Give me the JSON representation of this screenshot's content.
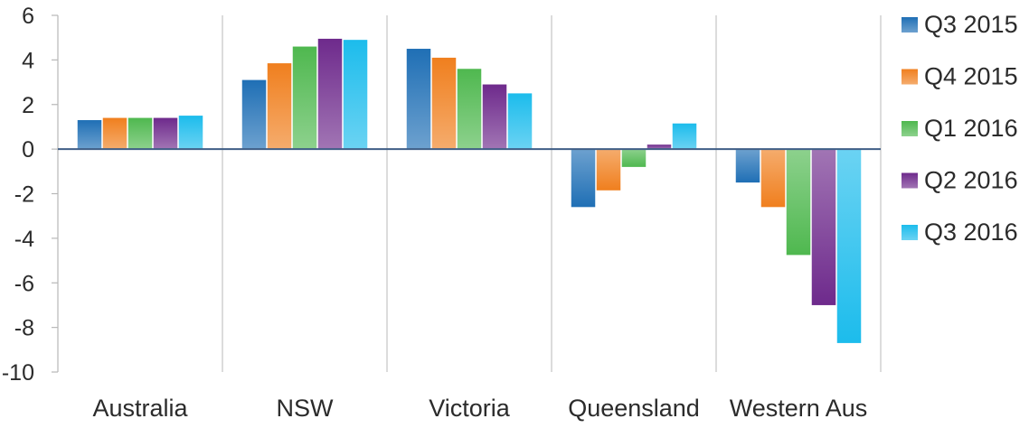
{
  "chart_data": {
    "type": "bar",
    "title": "",
    "xlabel": "",
    "ylabel": "",
    "ylim": [
      -10,
      6
    ],
    "yticks": [
      6,
      4,
      2,
      0,
      -2,
      -4,
      -6,
      -8,
      -10
    ],
    "ytick_labels": [
      "6",
      "4",
      "2",
      "0",
      "-2",
      "-4",
      "-6",
      "-8",
      "-10"
    ],
    "categories": [
      "Australia",
      "NSW",
      "Victoria",
      "Queensland",
      "Western Aus"
    ],
    "grid": false,
    "category_separators": true,
    "legend_position": "right",
    "series": [
      {
        "name": "Q3 2015",
        "color": "#1f6fb5",
        "values": [
          1.3,
          3.1,
          4.5,
          -2.6,
          -1.5
        ]
      },
      {
        "name": "Q4 2015",
        "color": "#f07f1e",
        "values": [
          1.4,
          3.85,
          4.1,
          -1.85,
          -2.6
        ]
      },
      {
        "name": "Q1 2016",
        "color": "#4fb84f",
        "values": [
          1.4,
          4.6,
          3.6,
          -0.8,
          -4.75
        ]
      },
      {
        "name": "Q2 2016",
        "color": "#6e2a8c",
        "values": [
          1.4,
          4.95,
          2.9,
          0.2,
          -7.0
        ]
      },
      {
        "name": "Q3 2016",
        "color": "#1cbcec",
        "values": [
          1.5,
          4.9,
          2.5,
          1.15,
          -8.7
        ]
      }
    ]
  }
}
